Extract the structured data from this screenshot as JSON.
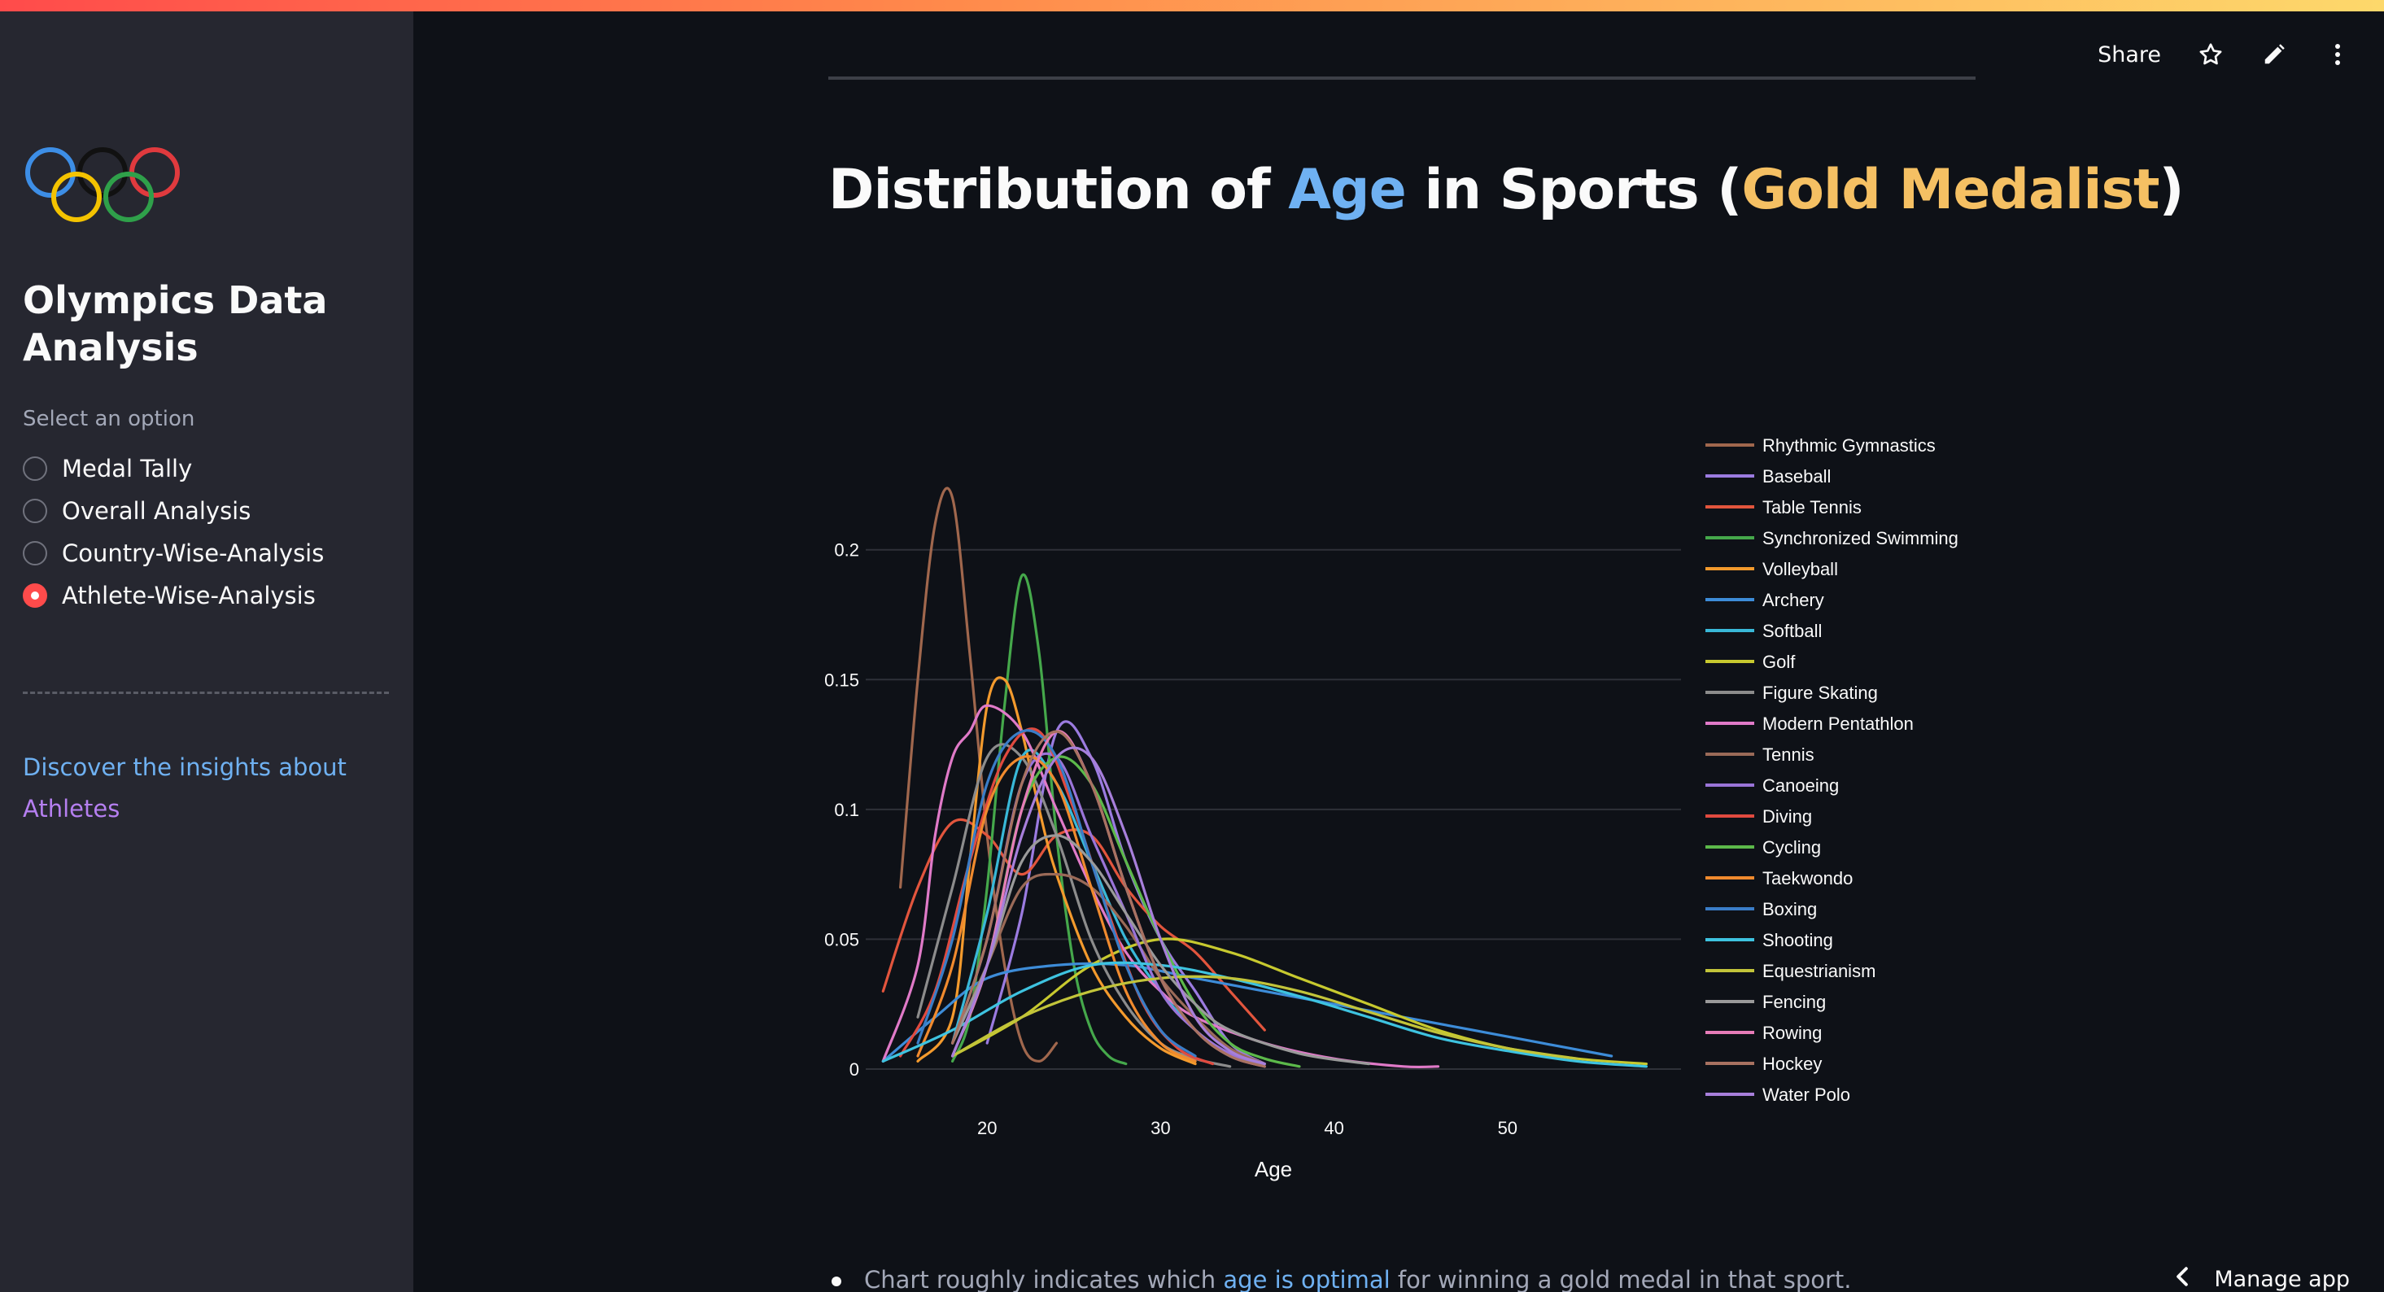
{
  "sidebar": {
    "app_title": "Olympics Data Analysis",
    "radio_label": "Select an option",
    "options": [
      {
        "label": "Medal Tally",
        "selected": false
      },
      {
        "label": "Overall Analysis",
        "selected": false
      },
      {
        "label": "Country-Wise-Analysis",
        "selected": false
      },
      {
        "label": "Athlete-Wise-Analysis",
        "selected": true
      }
    ],
    "insight_part1": "Discover the insights about",
    "insight_part2": "Athletes"
  },
  "header": {
    "share_label": "Share",
    "icons": [
      "star-icon",
      "pencil-icon",
      "more-vertical-icon"
    ]
  },
  "page": {
    "title_prefix": "Distribution of ",
    "title_age": "Age",
    "title_middle": " in Sports (",
    "title_gold": "Gold Medalist",
    "title_suffix": ")"
  },
  "bullet": {
    "before": "Chart roughly indicates which ",
    "highlight": "age is optimal",
    "after": " for winning a gold medal in that sport."
  },
  "footer": {
    "manage_label": "Manage app"
  },
  "colors": {
    "accent_red": "#ff4b4b",
    "link_blue": "#6fb1f2",
    "gold": "#f5c063",
    "purple": "#b57ff0"
  },
  "chart_data": {
    "type": "line",
    "xlabel": "Age",
    "ylabel": "",
    "xlim": [
      13,
      60
    ],
    "ylim": [
      0,
      0.235
    ],
    "x_ticks": [
      20,
      30,
      40,
      50
    ],
    "y_ticks": [
      0,
      0.05,
      0.1,
      0.15,
      0.2
    ],
    "y_tick_labels": [
      "0",
      "0.05",
      "0.1",
      "0.15",
      "0.2"
    ],
    "grid": true,
    "legend_position": "right",
    "series": [
      {
        "name": "Rhythmic Gymnastics",
        "color": "#a0674d",
        "x": [
          15,
          16,
          17,
          18,
          19,
          20,
          21,
          22,
          23,
          24
        ],
        "y": [
          0.07,
          0.15,
          0.21,
          0.22,
          0.16,
          0.09,
          0.04,
          0.01,
          0.003,
          0.01
        ]
      },
      {
        "name": "Baseball",
        "color": "#9b7be0",
        "x": [
          20,
          22,
          24,
          26,
          28,
          30,
          32,
          34,
          36
        ],
        "y": [
          0.01,
          0.06,
          0.13,
          0.12,
          0.08,
          0.05,
          0.03,
          0.01,
          0.002
        ]
      },
      {
        "name": "Table Tennis",
        "color": "#e2553d",
        "x": [
          14,
          16,
          18,
          20,
          22,
          24,
          26,
          28,
          30,
          32,
          34,
          36
        ],
        "y": [
          0.03,
          0.07,
          0.095,
          0.09,
          0.075,
          0.09,
          0.09,
          0.07,
          0.055,
          0.045,
          0.03,
          0.015
        ]
      },
      {
        "name": "Synchronized Swimming",
        "color": "#45a84b",
        "x": [
          18,
          19,
          20,
          21,
          22,
          23,
          24,
          25,
          26,
          27,
          28
        ],
        "y": [
          0.003,
          0.02,
          0.07,
          0.14,
          0.19,
          0.16,
          0.09,
          0.04,
          0.015,
          0.005,
          0.002
        ]
      },
      {
        "name": "Volleyball",
        "color": "#f39a2d",
        "x": [
          16,
          18,
          19,
          20,
          21,
          22,
          23,
          24,
          26,
          28,
          30,
          32
        ],
        "y": [
          0.003,
          0.02,
          0.08,
          0.14,
          0.15,
          0.13,
          0.1,
          0.075,
          0.04,
          0.02,
          0.008,
          0.002
        ]
      },
      {
        "name": "Archery",
        "color": "#3d8cd8",
        "x": [
          14,
          17,
          20,
          24,
          28,
          32,
          36,
          40,
          44,
          48,
          52,
          56
        ],
        "y": [
          0.003,
          0.02,
          0.035,
          0.04,
          0.04,
          0.035,
          0.03,
          0.025,
          0.02,
          0.015,
          0.01,
          0.005
        ]
      },
      {
        "name": "Softball",
        "color": "#39b8d8",
        "x": [
          18,
          20,
          22,
          24,
          26,
          28,
          30,
          32,
          34,
          36
        ],
        "y": [
          0.01,
          0.06,
          0.12,
          0.11,
          0.08,
          0.05,
          0.03,
          0.015,
          0.005,
          0.002
        ]
      },
      {
        "name": "Golf",
        "color": "#c7c92f",
        "x": [
          18,
          22,
          26,
          30,
          34,
          38,
          42,
          46,
          50,
          54,
          58
        ],
        "y": [
          0.005,
          0.02,
          0.04,
          0.05,
          0.045,
          0.035,
          0.025,
          0.015,
          0.008,
          0.004,
          0.002
        ]
      },
      {
        "name": "Figure Skating",
        "color": "#8c8c8c",
        "x": [
          16,
          18,
          20,
          22,
          24,
          26,
          28,
          30,
          32,
          34
        ],
        "y": [
          0.02,
          0.07,
          0.12,
          0.12,
          0.09,
          0.05,
          0.025,
          0.01,
          0.004,
          0.001
        ]
      },
      {
        "name": "Modern Pentathlon",
        "color": "#e07ac8",
        "x": [
          14,
          16,
          17,
          18,
          19,
          20,
          22,
          24,
          26,
          28,
          30,
          32,
          36,
          40,
          44,
          46
        ],
        "y": [
          0.003,
          0.04,
          0.09,
          0.12,
          0.13,
          0.14,
          0.13,
          0.1,
          0.07,
          0.045,
          0.03,
          0.02,
          0.01,
          0.004,
          0.001,
          0.001
        ]
      },
      {
        "name": "Tennis",
        "color": "#9a6a58",
        "x": [
          18,
          20,
          22,
          24,
          26,
          28,
          30,
          32,
          34,
          36
        ],
        "y": [
          0.01,
          0.04,
          0.07,
          0.075,
          0.07,
          0.055,
          0.035,
          0.02,
          0.008,
          0.002
        ]
      },
      {
        "name": "Canoeing",
        "color": "#9a74d8",
        "x": [
          18,
          20,
          22,
          24,
          26,
          28,
          30,
          32,
          34,
          36
        ],
        "y": [
          0.01,
          0.05,
          0.11,
          0.12,
          0.09,
          0.06,
          0.03,
          0.015,
          0.006,
          0.002
        ]
      },
      {
        "name": "Diving",
        "color": "#e04a3f",
        "x": [
          15,
          17,
          19,
          21,
          23,
          25,
          27,
          29,
          31,
          33
        ],
        "y": [
          0.005,
          0.03,
          0.08,
          0.12,
          0.13,
          0.1,
          0.06,
          0.025,
          0.008,
          0.002
        ]
      },
      {
        "name": "Cycling",
        "color": "#5cb94a",
        "x": [
          18,
          20,
          22,
          24,
          26,
          28,
          30,
          32,
          34,
          36,
          38
        ],
        "y": [
          0.005,
          0.04,
          0.1,
          0.12,
          0.11,
          0.08,
          0.05,
          0.025,
          0.01,
          0.004,
          0.001
        ]
      },
      {
        "name": "Taekwondo",
        "color": "#f08a2e",
        "x": [
          16,
          18,
          20,
          22,
          24,
          26,
          28,
          30,
          32
        ],
        "y": [
          0.005,
          0.04,
          0.1,
          0.12,
          0.11,
          0.07,
          0.03,
          0.01,
          0.003
        ]
      },
      {
        "name": "Boxing",
        "color": "#3a7dc7",
        "x": [
          16,
          18,
          20,
          22,
          24,
          26,
          28,
          30,
          32
        ],
        "y": [
          0.01,
          0.05,
          0.11,
          0.13,
          0.12,
          0.08,
          0.04,
          0.015,
          0.005
        ]
      },
      {
        "name": "Shooting",
        "color": "#3ec3e0",
        "x": [
          14,
          18,
          22,
          26,
          30,
          34,
          38,
          42,
          46,
          50,
          54,
          58
        ],
        "y": [
          0.003,
          0.015,
          0.03,
          0.04,
          0.04,
          0.035,
          0.028,
          0.02,
          0.012,
          0.007,
          0.003,
          0.001
        ]
      },
      {
        "name": "Equestrianism",
        "color": "#c2c43a",
        "x": [
          18,
          22,
          26,
          30,
          34,
          38,
          42,
          46,
          50,
          54
        ],
        "y": [
          0.005,
          0.02,
          0.03,
          0.035,
          0.035,
          0.03,
          0.022,
          0.014,
          0.008,
          0.004
        ]
      },
      {
        "name": "Fencing",
        "color": "#9a9a9a",
        "x": [
          18,
          20,
          22,
          24,
          26,
          28,
          30,
          32,
          34,
          38,
          42
        ],
        "y": [
          0.01,
          0.04,
          0.08,
          0.09,
          0.08,
          0.06,
          0.04,
          0.025,
          0.015,
          0.006,
          0.002
        ]
      },
      {
        "name": "Rowing",
        "color": "#e67cb8",
        "x": [
          18,
          20,
          22,
          24,
          26,
          28,
          30,
          32,
          34,
          36
        ],
        "y": [
          0.005,
          0.04,
          0.1,
          0.13,
          0.11,
          0.07,
          0.035,
          0.015,
          0.005,
          0.001
        ]
      },
      {
        "name": "Hockey",
        "color": "#a87261",
        "x": [
          18,
          20,
          22,
          24,
          26,
          28,
          30,
          32,
          34,
          36
        ],
        "y": [
          0.01,
          0.05,
          0.11,
          0.13,
          0.11,
          0.07,
          0.035,
          0.015,
          0.005,
          0.001
        ]
      },
      {
        "name": "Water Polo",
        "color": "#a77fdb",
        "x": [
          18,
          20,
          22,
          24,
          26,
          28,
          30,
          32,
          34,
          36
        ],
        "y": [
          0.005,
          0.04,
          0.09,
          0.12,
          0.12,
          0.09,
          0.05,
          0.02,
          0.007,
          0.002
        ]
      }
    ]
  }
}
